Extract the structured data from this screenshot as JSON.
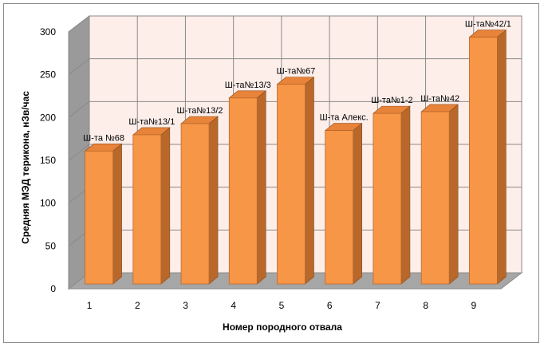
{
  "chart_data": {
    "type": "bar",
    "categories": [
      "1",
      "2",
      "3",
      "4",
      "5",
      "6",
      "7",
      "8",
      "9"
    ],
    "values": [
      159,
      178,
      191,
      221,
      237,
      183,
      203,
      205,
      292
    ],
    "data_labels": [
      "Ш-та №68",
      "Ш-та№13/1",
      "Ш-та№13/2",
      "Ш-та№13/3",
      "Ш-та№67",
      "Ш-та Алекс.",
      "Ш-та№1-2",
      "Ш-та№42",
      "Ш-та№42/1"
    ],
    "yticks": [
      0,
      50,
      100,
      150,
      200,
      250,
      300
    ],
    "ylim": [
      0,
      300
    ],
    "xlabel": "Номер породного отвала",
    "ylabel": "Средняя МЭД терикона, нЗв/час",
    "grid": true,
    "style": "3d",
    "colors": {
      "bar_front": "#f79646",
      "bar_side": "#b8682a",
      "bar_top": "#e8833a",
      "back_wall": "#fdeeea",
      "side_wall": "#9a9a9a",
      "floor": "#a6a6a6",
      "grid": "#8a8a8a"
    }
  }
}
